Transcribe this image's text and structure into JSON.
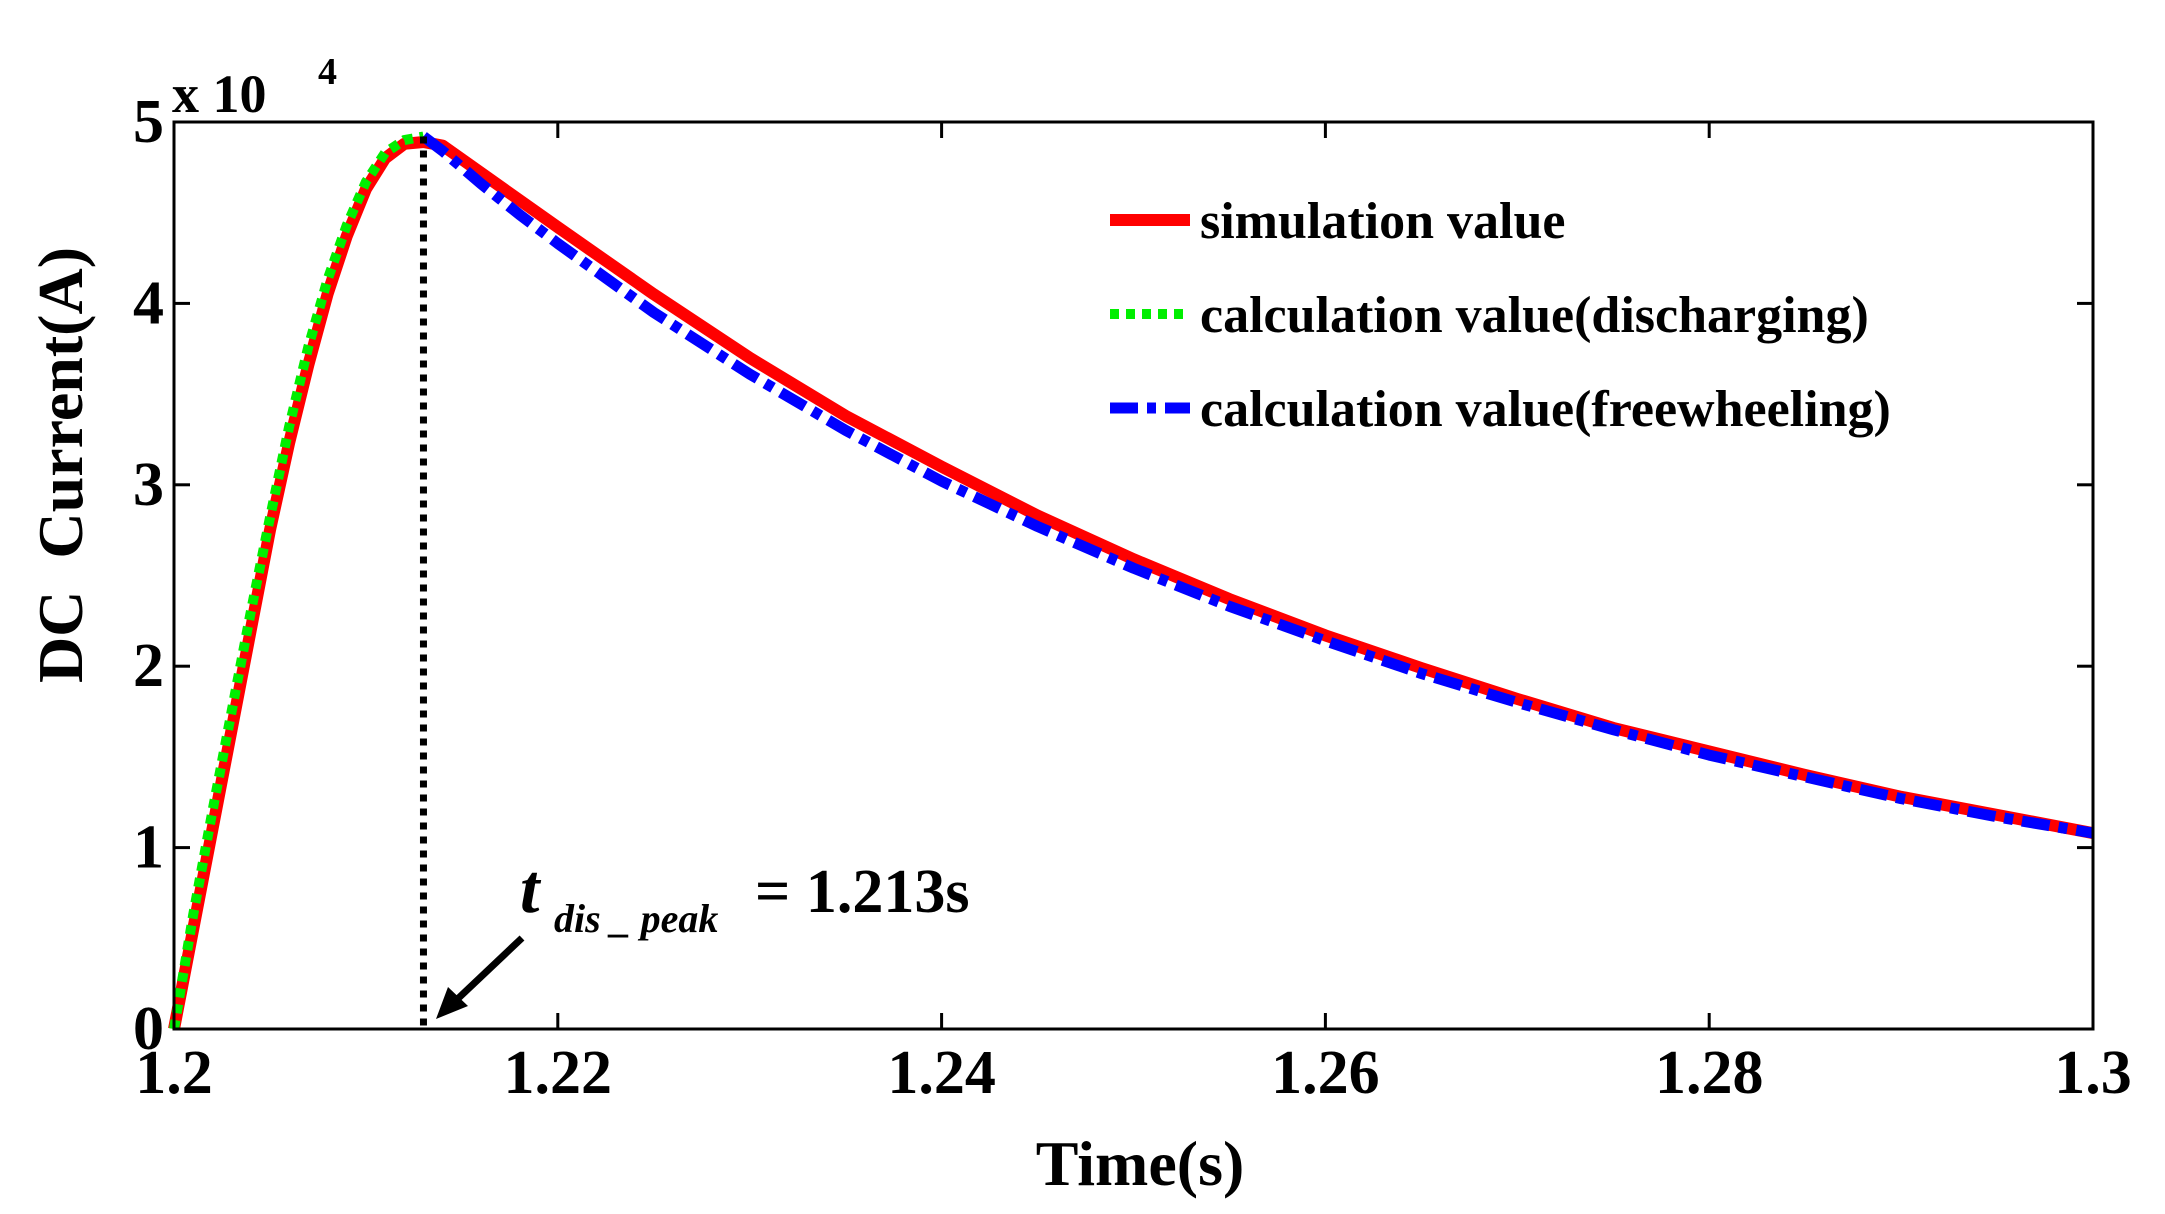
{
  "chart_data": {
    "type": "line",
    "xlabel": "Time(s)",
    "ylabel": "DC  Current(A)",
    "y_exponent_label": "x 10",
    "y_exponent_power": "4",
    "xlim": [
      1.2,
      1.3
    ],
    "ylim": [
      0,
      50000
    ],
    "x_ticks": [
      1.2,
      1.22,
      1.24,
      1.26,
      1.28,
      1.3
    ],
    "x_tick_labels": [
      "1.2",
      "1.22",
      "1.24",
      "1.26",
      "1.28",
      "1.3"
    ],
    "y_ticks": [
      0,
      10000,
      20000,
      30000,
      40000,
      50000
    ],
    "y_tick_labels": [
      "0",
      "1",
      "2",
      "3",
      "4",
      "5"
    ],
    "grid": false,
    "legend_position": "top-right",
    "series": [
      {
        "name": "simulation value",
        "color": "#ff0000",
        "style": "solid",
        "x": [
          1.2,
          1.201,
          1.202,
          1.203,
          1.204,
          1.205,
          1.206,
          1.207,
          1.208,
          1.209,
          1.21,
          1.211,
          1.212,
          1.213,
          1.214,
          1.216,
          1.218,
          1.22,
          1.225,
          1.23,
          1.235,
          1.24,
          1.245,
          1.25,
          1.255,
          1.26,
          1.265,
          1.27,
          1.275,
          1.28,
          1.285,
          1.29,
          1.295,
          1.3
        ],
        "y": [
          0,
          5500,
          11000,
          16500,
          22000,
          27500,
          32300,
          36600,
          40500,
          43700,
          46300,
          48000,
          48800,
          48900,
          48700,
          47200,
          45700,
          44200,
          40500,
          37000,
          33800,
          31000,
          28300,
          25900,
          23700,
          21700,
          19900,
          18200,
          16600,
          15300,
          14000,
          12800,
          11800,
          10800
        ]
      },
      {
        "name": "calculation value(discharging)",
        "color": "#00ee00",
        "style": "dotted",
        "x": [
          1.2,
          1.201,
          1.202,
          1.203,
          1.204,
          1.205,
          1.206,
          1.207,
          1.208,
          1.209,
          1.21,
          1.211,
          1.212,
          1.213
        ],
        "y": [
          0,
          6300,
          12000,
          17500,
          23000,
          28200,
          33200,
          37600,
          41300,
          44300,
          46700,
          48300,
          49000,
          49200
        ]
      },
      {
        "name": "calculation value(freewheeling)",
        "color": "#0000ff",
        "style": "dashdot",
        "x": [
          1.213,
          1.214,
          1.216,
          1.218,
          1.22,
          1.225,
          1.23,
          1.235,
          1.24,
          1.245,
          1.25,
          1.255,
          1.26,
          1.265,
          1.27,
          1.275,
          1.28,
          1.285,
          1.29,
          1.295,
          1.3
        ],
        "y": [
          49200,
          48400,
          46600,
          44900,
          43300,
          39500,
          36100,
          33000,
          30200,
          27700,
          25400,
          23300,
          21400,
          19600,
          18000,
          16500,
          15100,
          13900,
          12700,
          11700,
          10800
        ]
      }
    ],
    "annotation": {
      "label_t": "t",
      "label_sub": "dis _ peak",
      "label_value": "= 1.213s",
      "x": 1.213
    }
  }
}
